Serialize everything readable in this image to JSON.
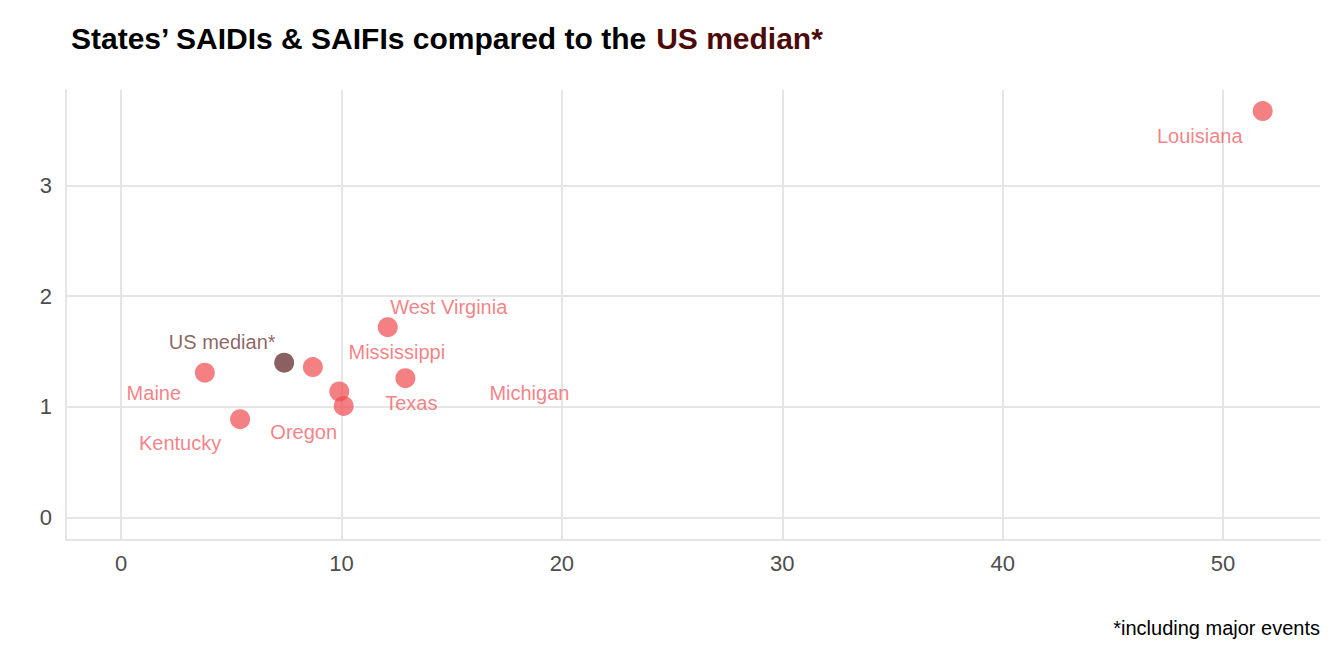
{
  "chart_data": {
    "type": "scatter",
    "title": "States’ SAIDIs & SAIFIs compared to the US median*",
    "annotations": [
      "*including major events"
    ],
    "series": [
      {
        "name": "US median*",
        "color": "#4d0a0a",
        "x": [
          7.4
        ],
        "y": [
          1.4
        ],
        "labels": [
          "US median*"
        ]
      },
      {
        "color": "#f04a4f",
        "x": [
          51.8,
          12.1,
          8.7,
          12.9,
          9.9,
          10.1,
          3.8,
          5.4
        ],
        "y": [
          3.67,
          1.72,
          1.36,
          1.26,
          1.14,
          1.01,
          1.31,
          0.89
        ],
        "labels": [
          "Louisiana",
          "West Virginia",
          "Mississippi",
          "Michigan",
          "Texas",
          "Oregon",
          "Maine",
          "Kentucky"
        ]
      }
    ],
    "xlim": [
      -2.5,
      54.4
    ],
    "xticks": [
      0,
      10,
      20,
      30,
      40,
      50
    ],
    "ylim": [
      -0.2,
      3.86
    ],
    "yticks": [
      0,
      1,
      2,
      3
    ],
    "grid": true,
    "legend": false
  }
}
